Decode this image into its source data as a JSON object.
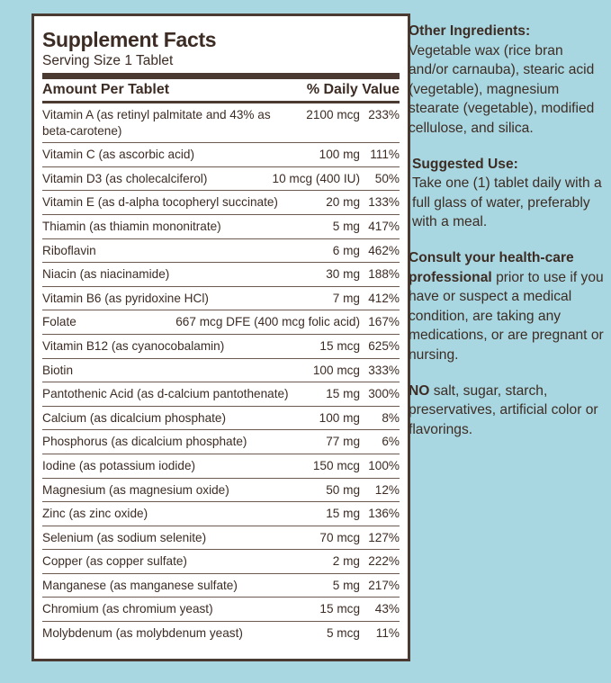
{
  "facts": {
    "title": "Supplement Facts",
    "serving": "Serving Size 1 Tablet",
    "header_left": "Amount Per Tablet",
    "header_right": "% Daily Value",
    "rows": [
      {
        "name": "Vitamin A",
        "source": "(as retinyl palmitate and 43% as beta-carotene)",
        "amount": "2100 mcg",
        "dv": "233%"
      },
      {
        "name": "Vitamin C",
        "source": "(as ascorbic acid)",
        "amount": "100 mg",
        "dv": "111%"
      },
      {
        "name": "Vitamin D3",
        "source": "(as cholecalciferol)",
        "amount": "10 mcg (400 IU)",
        "dv": "50%"
      },
      {
        "name": "Vitamin E",
        "source": "(as d-alpha tocopheryl succinate)",
        "amount": "20 mg",
        "dv": "133%"
      },
      {
        "name": "Thiamin",
        "source": "(as thiamin mononitrate)",
        "amount": "5 mg",
        "dv": "417%"
      },
      {
        "name": "Riboflavin",
        "amount": "6 mg",
        "dv": "462%"
      },
      {
        "name": "Niacin",
        "source": "(as niacinamide)",
        "amount": "30 mg",
        "dv": "188%"
      },
      {
        "name": "Vitamin B6",
        "source": "(as pyridoxine HCl)",
        "amount": "7 mg",
        "dv": "412%"
      },
      {
        "name": "Folate",
        "amount": "667 mcg DFE (400 mcg folic acid)",
        "dv": "167%"
      },
      {
        "name": "Vitamin B12",
        "source": "(as cyanocobalamin)",
        "amount": "15 mcg",
        "dv": "625%"
      },
      {
        "name": "Biotin",
        "amount": "100 mcg",
        "dv": "333%"
      },
      {
        "name": "Pantothenic Acid",
        "source": "(as d-calcium pantothenate)",
        "amount": "15 mg",
        "dv": "300%"
      },
      {
        "name": "Calcium",
        "source": "(as dicalcium phosphate)",
        "amount": "100 mg",
        "dv": "8%"
      },
      {
        "name": "Phosphorus",
        "source": "(as dicalcium phosphate)",
        "amount": "77 mg",
        "dv": "6%"
      },
      {
        "name": "Iodine",
        "source": "(as potassium iodide)",
        "amount": "150 mcg",
        "dv": "100%"
      },
      {
        "name": "Magnesium",
        "source": "(as magnesium oxide)",
        "amount": "50 mg",
        "dv": "12%"
      },
      {
        "name": "Zinc",
        "source": "(as zinc oxide)",
        "amount": "15 mg",
        "dv": "136%"
      },
      {
        "name": "Selenium",
        "source": "(as sodium selenite)",
        "amount": "70 mcg",
        "dv": "127%"
      },
      {
        "name": "Copper",
        "source": "(as copper sulfate)",
        "amount": "2 mg",
        "dv": "222%"
      },
      {
        "name": "Manganese",
        "source": "(as manganese sulfate)",
        "amount": "5 mg",
        "dv": "217%"
      },
      {
        "name": "Chromium",
        "source": "(as chromium yeast)",
        "amount": "15 mcg",
        "dv": "43%"
      },
      {
        "name": "Molybdenum",
        "source": "(as molybdenum yeast)",
        "amount": "5 mcg",
        "dv": "11%"
      }
    ]
  },
  "side": {
    "other_heading": "Other Ingredients:",
    "other_text": "Vegetable wax (rice bran and/or carnauba), stearic acid (vegetable), magnesium stearate (vegetable), modified cellulose, and silica.",
    "use_heading": "Suggested Use:",
    "use_text": "Take one (1) tablet daily with a full glass of water, preferably with a meal.",
    "consult_heading": "Consult your health-care professional",
    "consult_text": "prior to use if you have or suspect a medical condition, are taking any medications, or are pregnant or nursing.",
    "no_heading": "NO",
    "no_text": "salt, sugar, starch, preservatives, artificial color or flavorings."
  }
}
